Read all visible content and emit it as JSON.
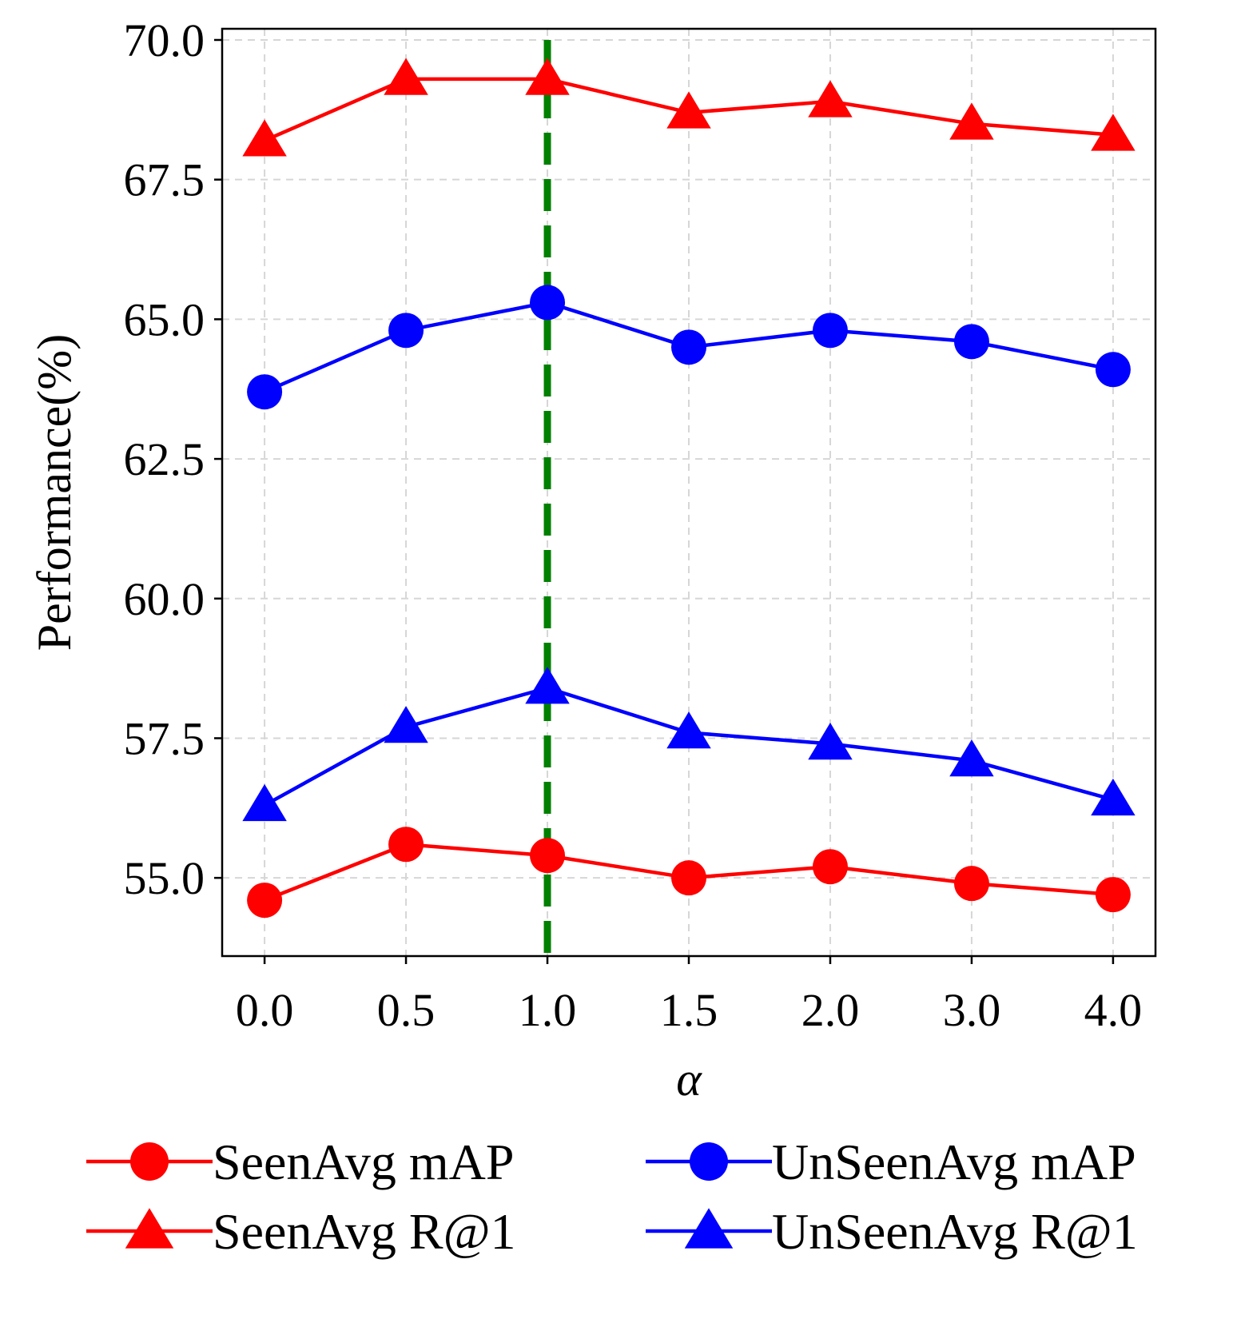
{
  "chart_data": {
    "type": "line",
    "title": "",
    "xlabel": "α",
    "ylabel": "Performance(%)",
    "categories": [
      "0.0",
      "0.5",
      "1.0",
      "1.5",
      "2.0",
      "3.0",
      "4.0"
    ],
    "ylim": [
      53.6,
      70.2
    ],
    "yticks": [
      "70.0",
      "67.5",
      "65.0",
      "62.5",
      "60.0",
      "57.5",
      "55.0"
    ],
    "ytick_values": [
      70.0,
      67.5,
      65.0,
      62.5,
      60.0,
      57.5,
      55.0
    ],
    "grid": true,
    "legend_placement": "bottom",
    "reference_line": {
      "category": "1.0",
      "style": "dashed",
      "color": "#008000"
    },
    "series": [
      {
        "name": "SeenAvg mAP",
        "color": "#ff0000",
        "marker": "circle",
        "values": [
          54.6,
          55.6,
          55.4,
          55.0,
          55.2,
          54.9,
          54.7
        ]
      },
      {
        "name": "UnSeenAvg mAP",
        "color": "#0000ff",
        "marker": "circle",
        "values": [
          63.7,
          64.8,
          65.3,
          64.5,
          64.8,
          64.6,
          64.1
        ]
      },
      {
        "name": "SeenAvg R@1",
        "color": "#ff0000",
        "marker": "triangle",
        "values": [
          68.2,
          69.3,
          69.3,
          68.7,
          68.9,
          68.5,
          68.3
        ]
      },
      {
        "name": "UnSeenAvg R@1",
        "color": "#0000ff",
        "marker": "triangle",
        "values": [
          56.3,
          57.7,
          58.4,
          57.6,
          57.4,
          57.1,
          56.4
        ]
      }
    ]
  }
}
